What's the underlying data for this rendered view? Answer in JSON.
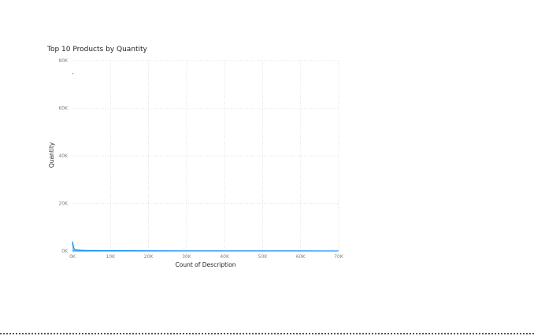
{
  "chart_data": {
    "type": "area",
    "title": "Top 10 Products by Quantity",
    "xlabel": "Count of Description",
    "ylabel": "Quantity",
    "xlim": [
      0,
      70000
    ],
    "ylim": [
      0,
      80000
    ],
    "x_ticks": [
      0,
      10000,
      20000,
      30000,
      40000,
      50000,
      60000,
      70000
    ],
    "x_tick_labels": [
      "0K",
      "10K",
      "20K",
      "30K",
      "40K",
      "50K",
      "60K",
      "70K"
    ],
    "y_ticks": [
      0,
      20000,
      40000,
      60000,
      80000
    ],
    "y_tick_labels": [
      "0K",
      "20K",
      "40K",
      "60K",
      "80K"
    ],
    "grid": true,
    "series_color": "#118DFF",
    "x": [
      0,
      50,
      100,
      150,
      200,
      250,
      300,
      400,
      500,
      700,
      1000,
      1500,
      2000,
      3000,
      5000,
      8000,
      12000,
      20000,
      30000,
      40000,
      50000,
      60000,
      70000
    ],
    "y": [
      4000,
      2600,
      3800,
      1900,
      2900,
      1500,
      1800,
      1200,
      900,
      700,
      550,
      450,
      380,
      300,
      230,
      180,
      150,
      120,
      100,
      90,
      80,
      70,
      60
    ],
    "outlier_points": [
      {
        "x": 100,
        "y": 74500
      }
    ]
  }
}
